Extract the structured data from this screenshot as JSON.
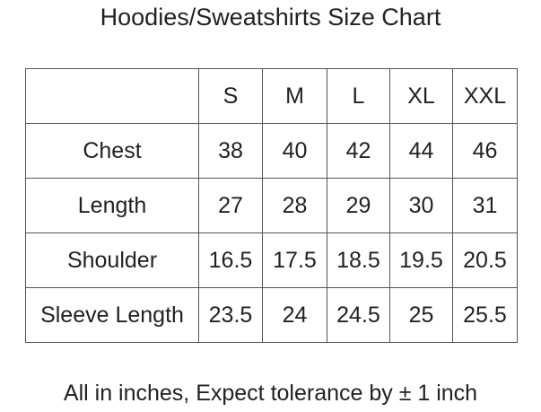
{
  "header": {
    "title": "Hoodies/Sweatshirts Size Chart"
  },
  "table": {
    "columns": [
      "S",
      "M",
      "L",
      "XL",
      "XXL"
    ],
    "rows": [
      {
        "label": "Chest",
        "values": [
          "38",
          "40",
          "42",
          "44",
          "46"
        ]
      },
      {
        "label": "Length",
        "values": [
          "27",
          "28",
          "29",
          "30",
          "31"
        ]
      },
      {
        "label": "Shoulder",
        "values": [
          "16.5",
          "17.5",
          "18.5",
          "19.5",
          "20.5"
        ]
      },
      {
        "label": "Sleeve Length",
        "values": [
          "23.5",
          "24",
          "24.5",
          "25",
          "25.5"
        ]
      }
    ]
  },
  "footer": {
    "note": "All in inches, Expect tolerance by ± 1 inch"
  }
}
